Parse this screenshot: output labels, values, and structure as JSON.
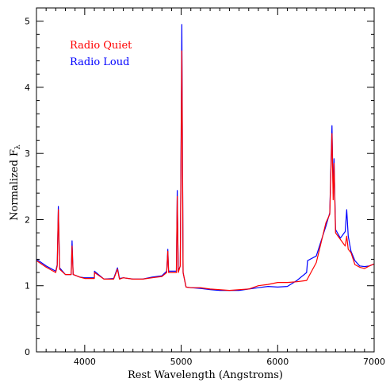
{
  "chart_data": {
    "type": "line",
    "title": "",
    "xlabel": "Rest Wavelength (Angstroms)",
    "ylabel": "Normalized F",
    "ylabel_subscript": "λ",
    "xlim": [
      3500,
      7000
    ],
    "ylim": [
      0,
      5.2
    ],
    "x_ticks": [
      4000,
      5000,
      6000,
      7000
    ],
    "y_ticks": [
      0,
      1,
      2,
      3,
      4,
      5
    ],
    "x_tick_labels": [
      "4000",
      "5000",
      "6000",
      "7000"
    ],
    "y_tick_labels": [
      "0",
      "1",
      "2",
      "3",
      "4",
      "5"
    ],
    "grid": false,
    "legend_position": "top-left",
    "series": [
      {
        "name": "Radio Quiet",
        "color": "#ff0000",
        "x": [
          3500,
          3600,
          3700,
          3715,
          3727,
          3740,
          3800,
          3860,
          3869,
          3880,
          3950,
          4000,
          4100,
          4101,
          4200,
          4300,
          4340,
          4360,
          4400,
          4500,
          4600,
          4700,
          4800,
          4850,
          4861,
          4870,
          4920,
          4950,
          4959,
          4970,
          4990,
          5007,
          5020,
          5050,
          5100,
          5200,
          5300,
          5400,
          5500,
          5600,
          5700,
          5800,
          5900,
          6000,
          6100,
          6200,
          6300,
          6400,
          6500,
          6540,
          6563,
          6575,
          6584,
          6600,
          6650,
          6700,
          6716,
          6731,
          6760,
          6800,
          6850,
          6900,
          6950,
          7000
        ],
        "values": [
          1.38,
          1.28,
          1.2,
          1.3,
          2.15,
          1.25,
          1.17,
          1.17,
          1.6,
          1.17,
          1.13,
          1.11,
          1.11,
          1.2,
          1.1,
          1.1,
          1.25,
          1.1,
          1.12,
          1.1,
          1.1,
          1.12,
          1.14,
          1.2,
          1.52,
          1.2,
          1.2,
          1.2,
          2.35,
          1.2,
          1.3,
          4.55,
          1.2,
          0.98,
          0.97,
          0.97,
          0.95,
          0.94,
          0.93,
          0.94,
          0.95,
          1.0,
          1.02,
          1.05,
          1.05,
          1.06,
          1.08,
          1.35,
          1.95,
          2.08,
          3.3,
          2.3,
          2.85,
          1.8,
          1.7,
          1.6,
          1.75,
          1.55,
          1.5,
          1.32,
          1.28,
          1.26,
          1.3,
          1.33
        ]
      },
      {
        "name": "Radio Loud",
        "color": "#0000ff",
        "x": [
          3500,
          3600,
          3700,
          3715,
          3727,
          3740,
          3800,
          3860,
          3869,
          3880,
          3950,
          4000,
          4100,
          4101,
          4200,
          4300,
          4340,
          4360,
          4400,
          4500,
          4600,
          4700,
          4800,
          4850,
          4861,
          4870,
          4920,
          4950,
          4959,
          4970,
          4990,
          5007,
          5020,
          5050,
          5100,
          5200,
          5300,
          5400,
          5500,
          5600,
          5700,
          5800,
          5900,
          6000,
          6100,
          6200,
          6300,
          6310,
          6400,
          6500,
          6540,
          6563,
          6575,
          6584,
          6600,
          6650,
          6700,
          6716,
          6731,
          6760,
          6800,
          6850,
          6900,
          6950,
          7000
        ],
        "values": [
          1.4,
          1.3,
          1.22,
          1.32,
          2.2,
          1.27,
          1.17,
          1.17,
          1.68,
          1.17,
          1.13,
          1.12,
          1.12,
          1.22,
          1.1,
          1.11,
          1.27,
          1.11,
          1.12,
          1.1,
          1.1,
          1.13,
          1.15,
          1.22,
          1.55,
          1.22,
          1.22,
          1.22,
          2.44,
          1.22,
          1.3,
          4.95,
          1.2,
          0.98,
          0.97,
          0.96,
          0.94,
          0.93,
          0.93,
          0.93,
          0.95,
          0.97,
          0.99,
          0.98,
          0.99,
          1.08,
          1.2,
          1.38,
          1.45,
          1.9,
          2.1,
          3.42,
          2.4,
          2.92,
          1.85,
          1.72,
          1.82,
          2.15,
          1.75,
          1.52,
          1.38,
          1.3,
          1.29,
          1.3,
          1.33
        ]
      }
    ]
  }
}
